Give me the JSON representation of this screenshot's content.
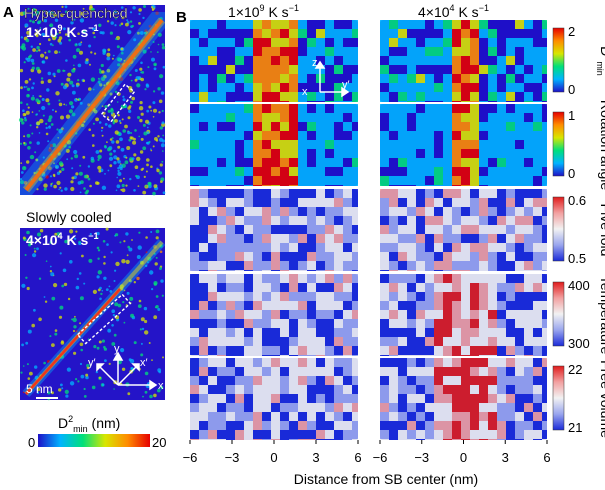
{
  "panel_a": {
    "letter": "A",
    "top_sim": {
      "title": "Hyper-quenched",
      "rate_prefix": "1×10",
      "rate_exp": "9",
      "rate_unit": " K s",
      "rate_unit_exp": "−1"
    },
    "bottom_sim": {
      "title": "Slowly cooled",
      "rate_prefix": "4×10",
      "rate_exp": "4",
      "rate_unit": " K s",
      "rate_unit_exp": "−1"
    },
    "scalebar": "5 nm",
    "axes": {
      "x": "x",
      "y": "y",
      "xp": "x′",
      "yp": "y′"
    },
    "colorbar": {
      "label_main": "D",
      "label_sup": "2",
      "label_sub": "min",
      "label_unit": " (nm)",
      "min": "0",
      "max": "20",
      "colors": [
        "#1e10c8",
        "#00b4ff",
        "#00e07a",
        "#d8e600",
        "#ff8c00",
        "#e60000"
      ]
    }
  },
  "panel_b": {
    "letter": "B",
    "columns": [
      {
        "prefix": "1×10",
        "exp": "9",
        "unit": " K s",
        "unit_exp": "−1"
      },
      {
        "prefix": "4×10",
        "exp": "4",
        "unit": " K s",
        "unit_exp": "−1"
      }
    ],
    "coord_axes": {
      "z": "z",
      "x": "x",
      "y": "y′"
    },
    "rows": [
      {
        "label": "D",
        "label_sup": "2",
        "label_sub": "min",
        "cb_max": "2",
        "cb_min": "0",
        "colors": [
          "#1e10c8",
          "#00b4ff",
          "#00e07a",
          "#d8e600",
          "#ff8c00",
          "#e60000"
        ]
      },
      {
        "label": "Rotation angle",
        "cb_max": "1",
        "cb_min": "0",
        "colors": [
          "#1e10c8",
          "#00b4ff",
          "#00e07a",
          "#d8e600",
          "#ff8c00",
          "#e60000"
        ]
      },
      {
        "label": "Five fold",
        "cb_max": "0.6",
        "cb_min": "0.5",
        "colors": [
          "#1a2ad8",
          "#9aa6ee",
          "#f2f2f2",
          "#f2a0a0",
          "#e01c1c"
        ]
      },
      {
        "label": "Temperature",
        "cb_max": "400",
        "cb_min": "300",
        "colors": [
          "#1a2ad8",
          "#9aa6ee",
          "#f2f2f2",
          "#f2a0a0",
          "#e01c1c"
        ]
      },
      {
        "label": "Free volume",
        "cb_max": "22",
        "cb_min": "21",
        "colors": [
          "#1a2ad8",
          "#9aa6ee",
          "#f2f2f2",
          "#f2a0a0",
          "#e01c1c"
        ]
      }
    ],
    "xticks": [
      "−6",
      "−3",
      "0",
      "3",
      "6"
    ],
    "xlabel": "Distance from SB center (nm)"
  }
}
